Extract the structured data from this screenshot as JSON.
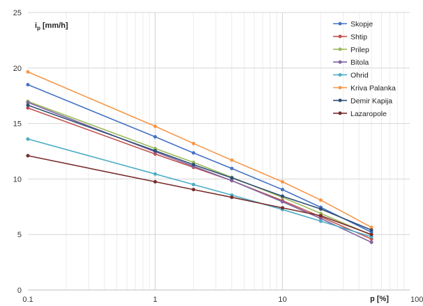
{
  "chart_data": {
    "type": "line",
    "x_scale": "log",
    "xlim": [
      0.1,
      100
    ],
    "ylim": [
      0,
      25
    ],
    "x_ticks": [
      0.1,
      1,
      10,
      100
    ],
    "x_tick_labels": [
      "0.1",
      "1",
      "10",
      "100"
    ],
    "y_ticks": [
      0,
      5,
      10,
      15,
      20,
      25
    ],
    "y_tick_labels": [
      "0",
      "5",
      "10",
      "15",
      "20",
      "25"
    ],
    "ylabel_main": "i",
    "ylabel_sub": "p",
    "ylabel_unit": " [mm/h]",
    "xlabel": "p [%]",
    "grid": "major-and-minor",
    "legend_position": "top-right",
    "x": [
      0.1,
      1,
      2,
      4,
      10,
      20,
      50
    ],
    "series": [
      {
        "name": "Skopje",
        "color": "#4472C4",
        "values": [
          18.5,
          13.8,
          12.35,
          10.95,
          9.05,
          7.45,
          5.2
        ]
      },
      {
        "name": "Shtip",
        "color": "#C0504D",
        "values": [
          16.4,
          12.25,
          11.05,
          9.85,
          8.05,
          6.6,
          4.6
        ]
      },
      {
        "name": "Prilep",
        "color": "#9BBB59",
        "values": [
          17.0,
          12.75,
          11.5,
          10.15,
          8.35,
          6.9,
          4.95
        ]
      },
      {
        "name": "Bitola",
        "color": "#8064A2",
        "values": [
          16.9,
          12.45,
          11.15,
          9.85,
          7.95,
          6.45,
          4.3
        ]
      },
      {
        "name": "Ohrid",
        "color": "#4BACC6",
        "values": [
          13.6,
          10.45,
          9.5,
          8.55,
          7.25,
          6.2,
          4.8
        ]
      },
      {
        "name": "Kriva Palanka",
        "color": "#F79646",
        "values": [
          19.65,
          14.75,
          13.2,
          11.7,
          9.75,
          8.1,
          5.65
        ]
      },
      {
        "name": "Demir Kapija",
        "color": "#2C4D75",
        "values": [
          16.65,
          12.55,
          11.3,
          10.1,
          8.45,
          7.3,
          5.4
        ]
      },
      {
        "name": "Lazaropole",
        "color": "#772C2A",
        "values": [
          12.1,
          9.75,
          9.05,
          8.35,
          7.4,
          6.7,
          5.0
        ]
      }
    ]
  }
}
